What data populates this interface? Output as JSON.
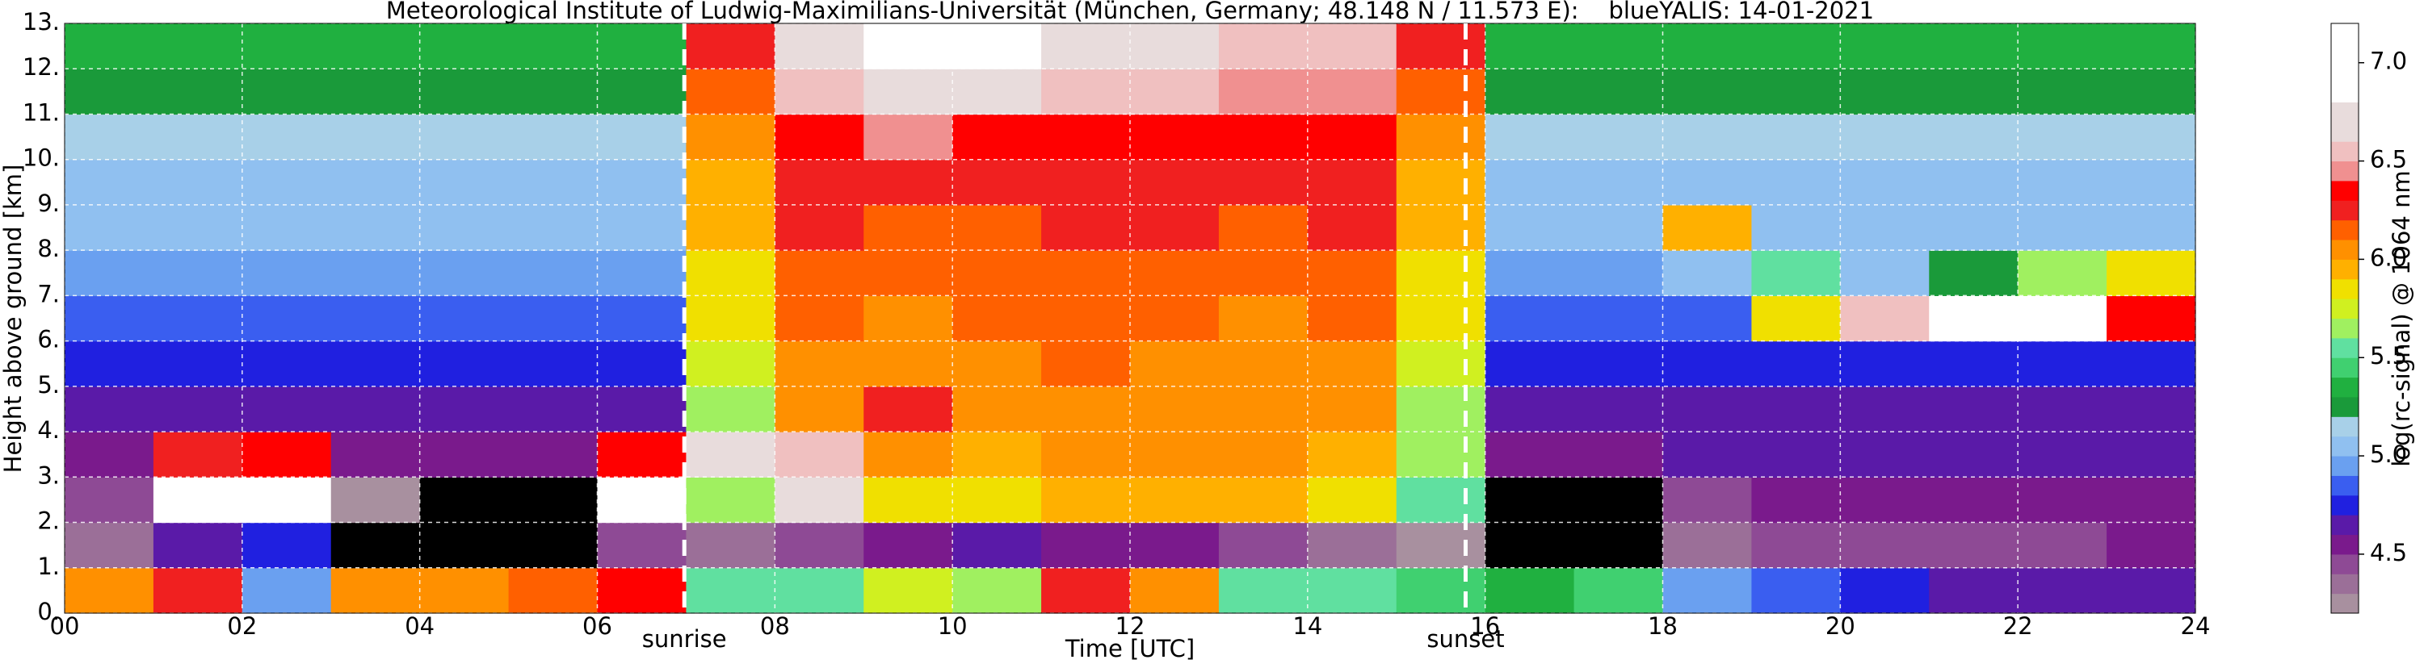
{
  "chart_data": {
    "type": "heatmap",
    "title": "Meteorological Institute of Ludwig-Maximilians-Universität (München, Germany; 48.148 N / 11.573 E):    blueYALIS: 14-01-2021",
    "x_label": "Time [UTC]",
    "y_label": "Height above ground [km]",
    "xlim": [
      0,
      24
    ],
    "ylim": [
      0,
      13
    ],
    "xticks": [
      {
        "value": 0,
        "label": "00"
      },
      {
        "value": 2,
        "label": "02"
      },
      {
        "value": 4,
        "label": "04"
      },
      {
        "value": 6,
        "label": "06"
      },
      {
        "value": 8,
        "label": "08"
      },
      {
        "value": 10,
        "label": "10"
      },
      {
        "value": 12,
        "label": "12"
      },
      {
        "value": 14,
        "label": "14"
      },
      {
        "value": 16,
        "label": "16"
      },
      {
        "value": 18,
        "label": "18"
      },
      {
        "value": 20,
        "label": "20"
      },
      {
        "value": 22,
        "label": "22"
      },
      {
        "value": 24,
        "label": "24"
      }
    ],
    "yticks": [
      {
        "value": 0,
        "label": "0."
      },
      {
        "value": 1,
        "label": "1."
      },
      {
        "value": 2,
        "label": "2."
      },
      {
        "value": 3,
        "label": "3."
      },
      {
        "value": 4,
        "label": "4."
      },
      {
        "value": 5,
        "label": "5."
      },
      {
        "value": 6,
        "label": "6."
      },
      {
        "value": 7,
        "label": "7."
      },
      {
        "value": 8,
        "label": "8."
      },
      {
        "value": 9,
        "label": "9."
      },
      {
        "value": 10,
        "label": "10."
      },
      {
        "value": 11,
        "label": "11."
      },
      {
        "value": 12,
        "label": "12."
      },
      {
        "value": 13,
        "label": "13."
      }
    ],
    "grid": true,
    "values": [
      [
        6.0,
        6.2,
        4.9,
        6.0,
        6.0,
        6.1,
        6.3,
        5.5,
        5.5,
        5.7,
        5.6,
        6.2,
        6.0,
        5.5,
        5.5,
        5.4,
        5.3,
        5.4,
        4.9,
        4.8,
        4.7,
        4.6,
        4.6,
        4.6
      ],
      [
        4.3,
        4.6,
        4.7,
        4.0,
        4.0,
        4.1,
        4.4,
        4.3,
        4.4,
        4.5,
        4.6,
        4.5,
        4.5,
        4.4,
        4.3,
        4.2,
        4.0,
        4.0,
        4.3,
        4.4,
        4.4,
        4.4,
        4.4,
        4.5
      ],
      [
        4.4,
        6.8,
        6.8,
        4.2,
        4.1,
        4.1,
        6.8,
        5.6,
        6.6,
        5.8,
        5.8,
        5.9,
        5.9,
        5.9,
        5.8,
        5.5,
        4.1,
        4.1,
        4.4,
        4.5,
        4.5,
        4.5,
        4.5,
        4.5
      ],
      [
        4.5,
        6.2,
        6.3,
        4.5,
        4.5,
        4.5,
        6.3,
        6.6,
        6.5,
        6.0,
        5.9,
        6.0,
        6.0,
        6.0,
        5.9,
        5.6,
        4.5,
        4.5,
        4.6,
        4.6,
        4.6,
        4.6,
        4.6,
        4.6
      ],
      [
        4.6,
        4.6,
        4.6,
        4.6,
        4.6,
        4.6,
        4.6,
        5.6,
        6.0,
        6.2,
        6.0,
        6.0,
        6.0,
        6.0,
        6.0,
        5.6,
        4.6,
        4.6,
        4.6,
        4.6,
        4.6,
        4.6,
        4.6,
        4.6
      ],
      [
        4.7,
        4.7,
        4.7,
        4.7,
        4.7,
        4.7,
        4.7,
        5.7,
        6.0,
        6.0,
        6.0,
        6.1,
        6.0,
        6.0,
        6.0,
        5.7,
        4.7,
        4.7,
        4.7,
        4.7,
        4.7,
        4.7,
        4.7,
        4.7
      ],
      [
        4.8,
        4.8,
        4.8,
        4.8,
        4.8,
        4.8,
        4.8,
        5.8,
        6.1,
        6.0,
        6.1,
        6.1,
        6.1,
        6.0,
        6.1,
        5.8,
        4.8,
        4.8,
        4.8,
        5.8,
        6.5,
        6.9,
        6.9,
        6.3
      ],
      [
        4.9,
        4.9,
        4.9,
        4.9,
        4.9,
        4.9,
        4.9,
        5.8,
        6.1,
        6.1,
        6.1,
        6.1,
        6.1,
        6.1,
        6.1,
        5.8,
        4.9,
        4.9,
        5.0,
        5.5,
        5.0,
        5.2,
        5.6,
        5.8
      ],
      [
        5.0,
        5.0,
        5.0,
        5.0,
        5.0,
        5.0,
        5.0,
        5.9,
        6.2,
        6.1,
        6.1,
        6.2,
        6.2,
        6.1,
        6.2,
        5.9,
        5.0,
        5.0,
        5.9,
        5.0,
        5.0,
        5.0,
        5.0,
        5.0
      ],
      [
        5.0,
        5.0,
        5.0,
        5.0,
        5.0,
        5.0,
        5.0,
        5.9,
        6.2,
        6.2,
        6.2,
        6.2,
        6.2,
        6.2,
        6.2,
        5.9,
        5.0,
        5.0,
        5.0,
        5.0,
        5.0,
        5.0,
        5.0,
        5.0
      ],
      [
        5.1,
        5.1,
        5.1,
        5.1,
        5.1,
        5.1,
        5.1,
        6.0,
        6.3,
        6.4,
        6.3,
        6.3,
        6.3,
        6.3,
        6.3,
        6.0,
        5.1,
        5.1,
        5.1,
        5.1,
        5.1,
        5.1,
        5.1,
        5.1
      ],
      [
        5.2,
        5.2,
        5.2,
        5.2,
        5.2,
        5.2,
        5.2,
        6.1,
        6.5,
        6.6,
        6.6,
        6.5,
        6.5,
        6.4,
        6.4,
        6.1,
        5.2,
        5.2,
        5.2,
        5.2,
        5.2,
        5.2,
        5.2,
        5.2
      ],
      [
        5.3,
        5.3,
        5.3,
        5.3,
        5.3,
        5.3,
        5.3,
        6.2,
        6.6,
        6.8,
        6.8,
        6.6,
        6.6,
        6.5,
        6.5,
        6.2,
        5.3,
        5.3,
        5.3,
        5.3,
        5.3,
        5.3,
        5.3,
        5.3
      ]
    ],
    "annotations": [
      {
        "text": "sunrise",
        "x": 6.98
      },
      {
        "text": "sunset",
        "x": 15.78
      }
    ],
    "colorbar": {
      "label": "log(rc-signal) @ 1064 nm",
      "clim": [
        4.2,
        7.2
      ],
      "ticks": [
        4.5,
        {
          "value": 5,
          "label": "5.0"
        },
        5.5,
        {
          "value": 6,
          "label": "6.0"
        },
        6.5,
        {
          "value": 7,
          "label": "7.0"
        }
      ],
      "under_color": "#000000",
      "bounds": [
        4.2,
        4.3,
        4.4,
        4.5,
        4.6,
        4.7,
        4.8,
        4.9,
        5.0,
        5.1,
        5.2,
        5.3,
        5.4,
        5.5,
        5.6,
        5.7,
        5.8,
        5.9,
        6.0,
        6.1,
        6.2,
        6.3,
        6.4,
        6.5,
        6.6,
        6.8,
        7.2
      ],
      "colors": [
        "#a8909f",
        "#9b6f98",
        "#8e4a95",
        "#7a1a8c",
        "#5a1aa8",
        "#2020e0",
        "#3a5ef0",
        "#6aa0f0",
        "#90c0f0",
        "#a8d0e8",
        "#1a9a3a",
        "#20b040",
        "#40d070",
        "#60e0a0",
        "#a0f060",
        "#d0f020",
        "#f0e000",
        "#ffb000",
        "#ff9000",
        "#ff6000",
        "#f02020",
        "#ff0000",
        "#f09090",
        "#f0c0c0",
        "#e8dcdc",
        "#ffffff"
      ]
    }
  }
}
